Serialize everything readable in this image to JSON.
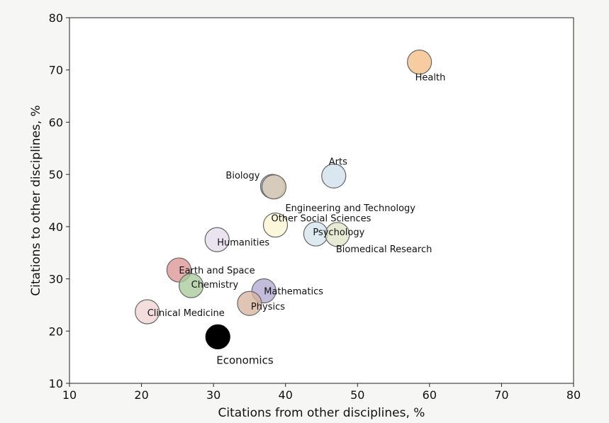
{
  "chart_data": {
    "type": "scatter",
    "title": "",
    "xlabel": "Citations from other disciplines, %",
    "ylabel": "Citations to other disciplines, %",
    "xlim": [
      10,
      80
    ],
    "ylim": [
      10,
      80
    ],
    "xticks": [
      10,
      20,
      30,
      40,
      50,
      60,
      70,
      80
    ],
    "yticks": [
      10,
      20,
      30,
      40,
      50,
      60,
      70,
      80
    ],
    "grid": false,
    "points": [
      {
        "label": "Health",
        "x": 58.6,
        "y": 71.5,
        "color": "#f2bf85"
      },
      {
        "label": "Arts",
        "x": 46.7,
        "y": 49.7,
        "color": "#cfe0ec"
      },
      {
        "label": "Biology",
        "x": 38.2,
        "y": 47.7,
        "color": "#9ab8d0"
      },
      {
        "label": "Engineering and Technology",
        "x": 38.4,
        "y": 47.6,
        "color": "#e2cdb2"
      },
      {
        "label": "Other Social Sciences",
        "x": 38.6,
        "y": 40.3,
        "color": "#fbf3cf"
      },
      {
        "label": "Psychology",
        "x": 44.2,
        "y": 38.6,
        "color": "#d4e4ee"
      },
      {
        "label": "Biomedical Research",
        "x": 47.2,
        "y": 38.5,
        "color": "#e0e5cb"
      },
      {
        "label": "Humanities",
        "x": 30.5,
        "y": 37.5,
        "color": "#e3ddec"
      },
      {
        "label": "Earth and Space",
        "x": 25.2,
        "y": 31.7,
        "color": "#dd9594"
      },
      {
        "label": "Chemistry",
        "x": 26.9,
        "y": 28.7,
        "color": "#a9ca9c"
      },
      {
        "label": "Mathematics",
        "x": 37.0,
        "y": 27.7,
        "color": "#b2a9d0"
      },
      {
        "label": "Physics",
        "x": 35.0,
        "y": 25.3,
        "color": "#d7b49f"
      },
      {
        "label": "Clinical Medicine",
        "x": 20.8,
        "y": 23.7,
        "color": "#f1d3d3"
      },
      {
        "label": "Economics",
        "x": 30.6,
        "y": 18.9,
        "color": "#000000"
      }
    ]
  }
}
